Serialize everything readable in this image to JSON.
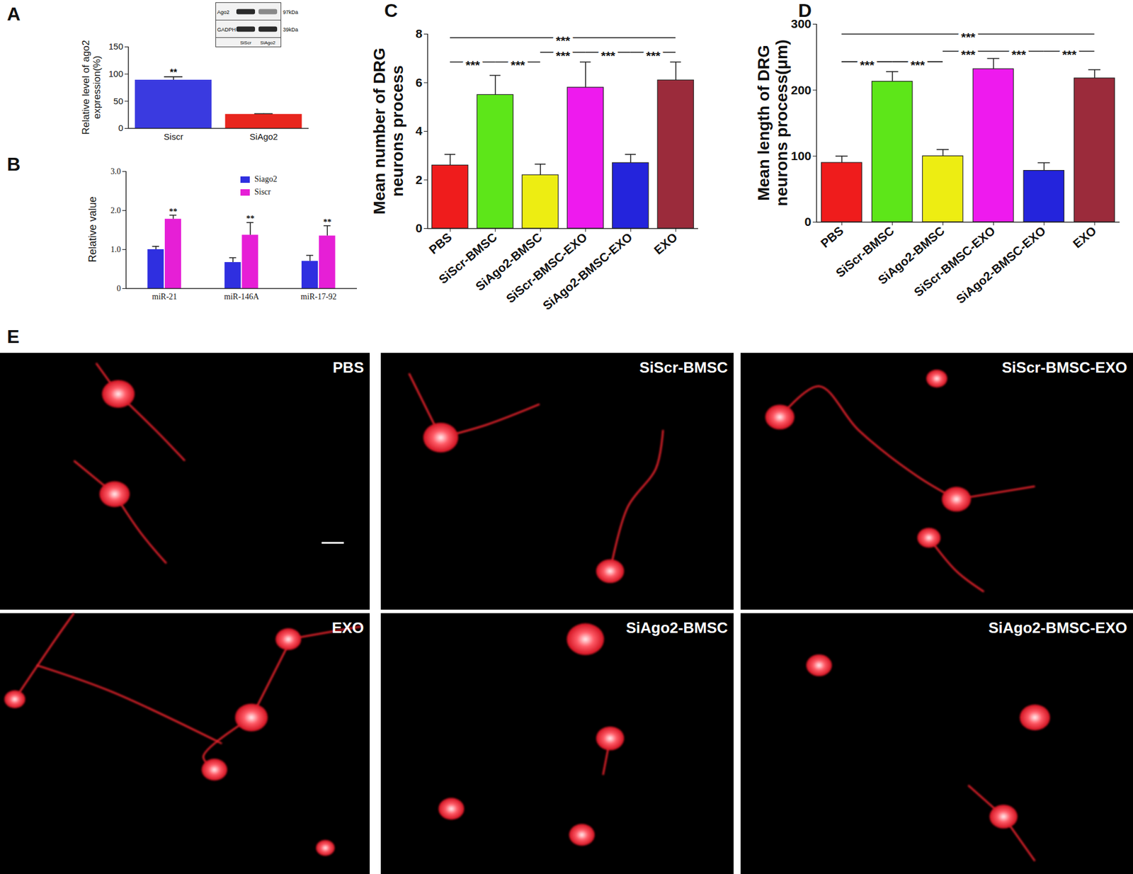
{
  "chart_data": [
    {
      "type": "bar",
      "title": "A",
      "categories": [
        "Siscr",
        "SiAgo2"
      ],
      "values": [
        89,
        26
      ],
      "errors": [
        6,
        1
      ],
      "colors": [
        "#3a3ae0",
        "#e8261e"
      ],
      "ylabel": "Relative level of ago2 expression(%)",
      "ylim": [
        0,
        150
      ],
      "yticks": [
        0,
        50,
        100,
        150
      ],
      "annotations": [
        {
          "category": "Siscr",
          "label": "**"
        }
      ],
      "inset": {
        "rows": [
          "Ago2",
          "GADPH"
        ],
        "sizes": [
          "97kDa",
          "39kDa"
        ],
        "lanes": [
          "SiScr",
          "SiAgo2"
        ]
      }
    },
    {
      "type": "bar",
      "title": "B",
      "categories": [
        "miR-21",
        "miR-146A",
        "miR-17-92"
      ],
      "series": [
        {
          "name": "Siago2",
          "color": "#2f2fe0",
          "values": [
            1.0,
            0.67,
            0.7
          ],
          "errors": [
            0.08,
            0.12,
            0.15
          ]
        },
        {
          "name": "Siscr",
          "color": "#e61fd6",
          "values": [
            1.78,
            1.37,
            1.35
          ],
          "errors": [
            0.1,
            0.32,
            0.26
          ]
        }
      ],
      "ylabel": "Relative value",
      "ylim": [
        0,
        3
      ],
      "yticks": [
        0,
        {
          "value": 1,
          "label": "1.0"
        },
        {
          "value": 2,
          "label": "2.0"
        },
        {
          "value": 3,
          "label": "3.0"
        }
      ],
      "legend": "upper right",
      "annotations": [
        {
          "category": "miR-21",
          "series": "Siscr",
          "label": "**"
        },
        {
          "category": "miR-146A",
          "series": "Siscr",
          "label": "**"
        },
        {
          "category": "miR-17-92",
          "series": "Siscr",
          "label": "**"
        }
      ]
    },
    {
      "type": "bar",
      "title": "C",
      "categories": [
        "PBS",
        "SiScr-BMSC",
        "SiAgo2-BMSC",
        "SiScr-BMSC-EXO",
        "SiAgo2-BMSC-EXO",
        "EXO"
      ],
      "values": [
        2.6,
        5.5,
        2.2,
        5.8,
        2.7,
        6.1
      ],
      "errors": [
        0.45,
        0.8,
        0.45,
        1.05,
        0.35,
        0.75
      ],
      "colors": [
        "#ef1c1c",
        "#5de619",
        "#eded12",
        "#ee1aee",
        "#2424dc",
        "#9b2b3b"
      ],
      "ylabel": "Mean number of DRG neurons process",
      "ylim": [
        0,
        8
      ],
      "yticks": [
        0,
        2,
        4,
        6,
        8
      ],
      "annotations": [
        {
          "from": "PBS",
          "to": "SiScr-BMSC",
          "y": 6.85,
          "label": "***"
        },
        {
          "from": "SiScr-BMSC",
          "to": "SiAgo2-BMSC",
          "y": 6.85,
          "label": "***"
        },
        {
          "from": "SiAgo2-BMSC",
          "to": "SiScr-BMSC-EXO",
          "y": 7.25,
          "label": "***"
        },
        {
          "from": "SiScr-BMSC-EXO",
          "to": "SiAgo2-BMSC-EXO",
          "y": 7.25,
          "label": "***"
        },
        {
          "from": "SiAgo2-BMSC-EXO",
          "to": "EXO",
          "y": 7.25,
          "label": "***"
        },
        {
          "from": "PBS",
          "to": "EXO",
          "y": 7.85,
          "label": "***"
        }
      ]
    },
    {
      "type": "bar",
      "title": "D",
      "categories": [
        "PBS",
        "SiScr-BMSC",
        "SiAgo2-BMSC",
        "SiScr-BMSC-EXO",
        "SiAgo2-BMSC-EXO",
        "EXO"
      ],
      "values": [
        90,
        213,
        100,
        232,
        78,
        218
      ],
      "errors": [
        10,
        15,
        10,
        16,
        12,
        13
      ],
      "colors": [
        "#ef1c1c",
        "#5de619",
        "#eded12",
        "#ee1aee",
        "#2424dc",
        "#9b2b3b"
      ],
      "ylabel": "Mean length of DRG neurons process(μm)",
      "ylim": [
        0,
        300
      ],
      "yticks": [
        0,
        100,
        200,
        300
      ],
      "annotations": [
        {
          "from": "PBS",
          "to": "SiScr-BMSC",
          "y": 243,
          "label": "***"
        },
        {
          "from": "SiScr-BMSC",
          "to": "SiAgo2-BMSC",
          "y": 243,
          "label": "***"
        },
        {
          "from": "SiAgo2-BMSC",
          "to": "SiScr-BMSC-EXO",
          "y": 259,
          "label": "***"
        },
        {
          "from": "SiScr-BMSC-EXO",
          "to": "SiAgo2-BMSC-EXO",
          "y": 259,
          "label": "***"
        },
        {
          "from": "SiAgo2-BMSC-EXO",
          "to": "EXO",
          "y": 259,
          "label": "***"
        },
        {
          "from": "PBS",
          "to": "EXO",
          "y": 285,
          "label": "***"
        }
      ]
    }
  ],
  "image_panels": {
    "label": "E",
    "panels": [
      "PBS",
      "SiScr-BMSC",
      "SiScr-BMSC-EXO",
      "EXO",
      "SiAgo2-BMSC",
      "SiAgo2-BMSC-EXO"
    ]
  }
}
